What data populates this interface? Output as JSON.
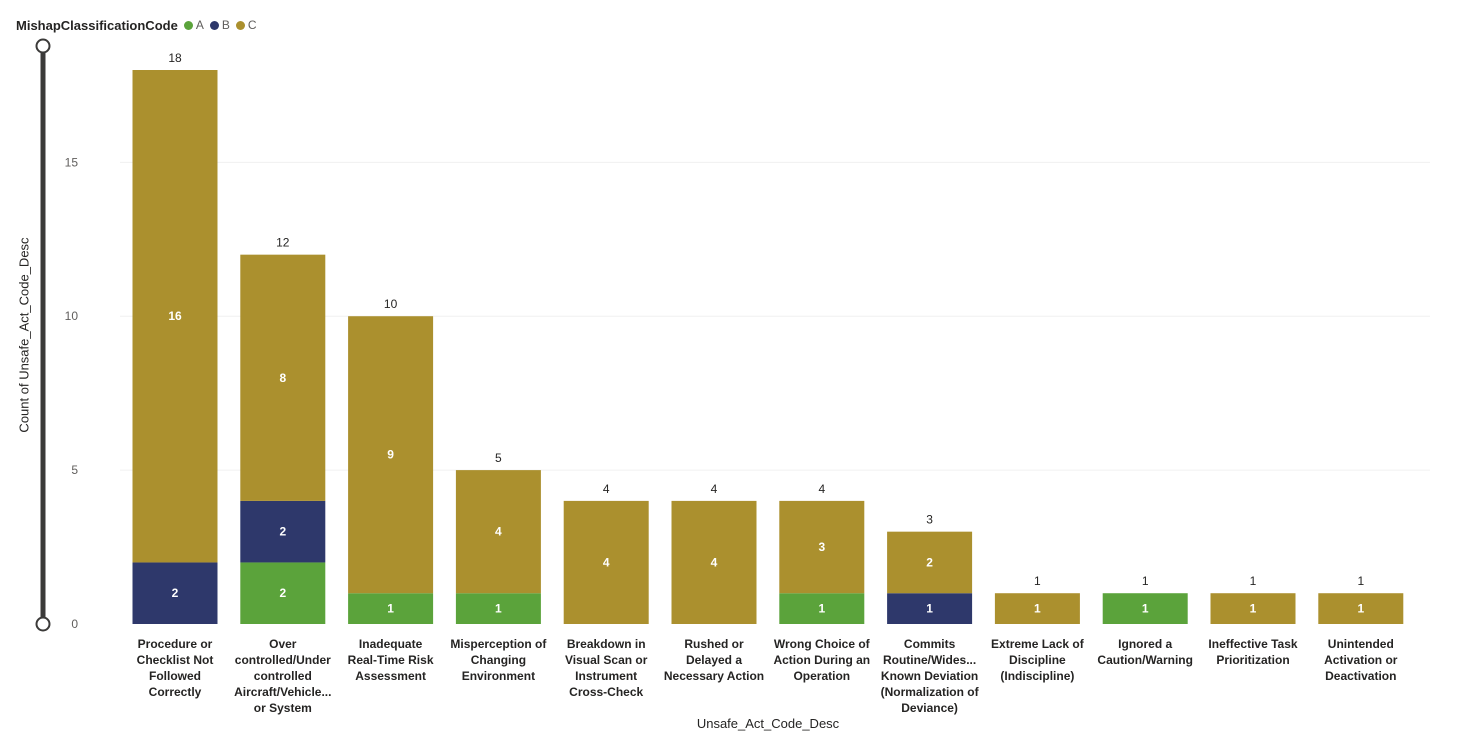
{
  "chart_data": {
    "type": "bar",
    "stacked": true,
    "title": "",
    "xlabel": "Unsafe_Act_Code_Desc",
    "ylabel": "Count of Unsafe_Act_Code_Desc",
    "ylim": [
      0,
      18
    ],
    "yticks": [
      0,
      5,
      10,
      15
    ],
    "legend": {
      "title": "MishapClassificationCode",
      "position": "top-left",
      "entries": [
        "A",
        "B",
        "C"
      ]
    },
    "colors": {
      "A": "#5ba33b",
      "B": "#2e386b",
      "C": "#ab902e"
    },
    "categories": [
      "Procedure or Checklist Not Followed Correctly",
      "Over controlled/Under controlled Aircraft/Vehicle... or System",
      "Inadequate Real-Time Risk Assessment",
      "Misperception of Changing Environment",
      "Breakdown in Visual Scan or Instrument Cross-Check",
      "Rushed or Delayed a Necessary Action",
      "Wrong Choice of Action During an Operation",
      "Commits Routine/Wides... Known Deviation (Normalization of Deviance)",
      "Extreme Lack of Discipline (Indiscipline)",
      "Ignored a Caution/Warning",
      "Ineffective Task Prioritization",
      "Unintended Activation or Deactivation"
    ],
    "series": [
      {
        "name": "A",
        "values": [
          0,
          2,
          1,
          1,
          0,
          0,
          1,
          0,
          0,
          1,
          0,
          0
        ]
      },
      {
        "name": "B",
        "values": [
          2,
          2,
          0,
          0,
          0,
          0,
          0,
          1,
          0,
          0,
          0,
          0
        ]
      },
      {
        "name": "C",
        "values": [
          16,
          8,
          9,
          4,
          4,
          4,
          3,
          2,
          1,
          0,
          1,
          1
        ]
      }
    ],
    "totals": [
      18,
      12,
      10,
      5,
      4,
      4,
      4,
      3,
      1,
      1,
      1,
      1
    ]
  }
}
